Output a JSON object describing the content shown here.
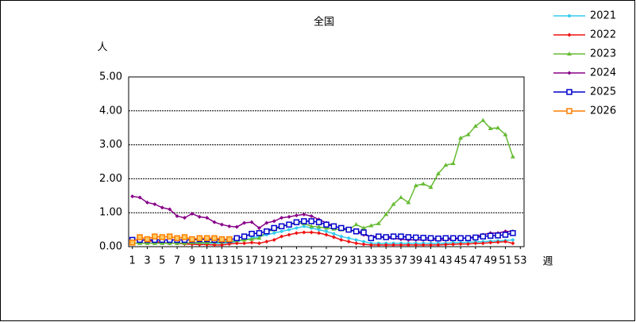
{
  "chart_data": {
    "type": "line",
    "title": "全国",
    "y_label": "人",
    "x_label": "週",
    "x": [
      1,
      2,
      3,
      4,
      5,
      6,
      7,
      8,
      9,
      10,
      11,
      12,
      13,
      14,
      15,
      16,
      17,
      18,
      19,
      20,
      21,
      22,
      23,
      24,
      25,
      26,
      27,
      28,
      29,
      30,
      31,
      32,
      33,
      34,
      35,
      36,
      37,
      38,
      39,
      40,
      41,
      42,
      43,
      44,
      45,
      46,
      47,
      48,
      49,
      50,
      51,
      52,
      53
    ],
    "xlim": [
      0.5,
      53.5
    ],
    "xticks": [
      1,
      3,
      5,
      7,
      9,
      11,
      13,
      15,
      17,
      19,
      21,
      23,
      25,
      27,
      29,
      31,
      33,
      35,
      37,
      39,
      41,
      43,
      45,
      47,
      49,
      51,
      53
    ],
    "ylim": [
      0,
      5
    ],
    "yticks": [
      {
        "value": 0,
        "label": "0.00"
      },
      {
        "value": 1,
        "label": "1.00"
      },
      {
        "value": 2,
        "label": "2.00"
      },
      {
        "value": 3,
        "label": "3.00"
      },
      {
        "value": 4,
        "label": "4.00"
      },
      {
        "value": 5,
        "label": "5.00"
      }
    ],
    "grid": true,
    "legend": "right",
    "series": [
      {
        "name": "2021",
        "color": "#33ccee",
        "marker": "circle",
        "values": [
          0.1,
          0.1,
          0.1,
          0.1,
          0.1,
          0.1,
          0.1,
          0.1,
          0.1,
          0.1,
          0.1,
          0.1,
          0.1,
          0.12,
          0.15,
          0.2,
          0.25,
          0.3,
          0.35,
          0.4,
          0.45,
          0.5,
          0.55,
          0.6,
          0.55,
          0.5,
          0.45,
          0.38,
          0.3,
          0.25,
          0.2,
          0.15,
          0.1,
          0.1,
          0.1,
          0.1,
          0.1,
          0.1,
          0.1,
          0.1,
          0.1,
          0.1,
          0.1,
          0.12,
          0.12,
          0.13,
          0.14,
          0.15,
          0.16,
          0.17,
          0.18,
          0.2,
          null
        ]
      },
      {
        "name": "2022",
        "color": "#ee1111",
        "marker": "diamond",
        "values": [
          0.2,
          0.2,
          0.18,
          0.15,
          0.12,
          0.1,
          0.1,
          0.08,
          0.07,
          0.06,
          0.06,
          0.05,
          0.05,
          0.08,
          0.1,
          0.1,
          0.12,
          0.1,
          0.15,
          0.2,
          0.3,
          0.35,
          0.4,
          0.42,
          0.42,
          0.4,
          0.35,
          0.28,
          0.2,
          0.15,
          0.1,
          0.07,
          0.05,
          0.05,
          0.05,
          0.05,
          0.05,
          0.05,
          0.05,
          0.05,
          0.05,
          0.05,
          0.06,
          0.07,
          0.08,
          0.08,
          0.1,
          0.1,
          0.12,
          0.13,
          0.15,
          0.1,
          null
        ]
      },
      {
        "name": "2023",
        "color": "#66bb33",
        "marker": "triangle",
        "values": [
          0.1,
          0.1,
          0.1,
          0.1,
          0.1,
          0.1,
          0.1,
          0.1,
          0.12,
          0.12,
          0.12,
          0.13,
          0.14,
          0.15,
          0.18,
          0.2,
          0.22,
          0.25,
          0.45,
          0.5,
          0.6,
          0.65,
          0.7,
          0.68,
          0.6,
          0.58,
          0.55,
          0.52,
          0.5,
          0.5,
          0.65,
          0.55,
          0.62,
          0.68,
          0.95,
          1.25,
          1.45,
          1.3,
          1.8,
          1.85,
          1.75,
          2.15,
          2.4,
          2.45,
          3.2,
          3.3,
          3.55,
          3.72,
          3.48,
          3.5,
          3.3,
          2.65,
          null
        ]
      },
      {
        "name": "2024",
        "color": "#880088",
        "marker": "diamond",
        "values": [
          1.48,
          1.45,
          1.3,
          1.25,
          1.15,
          1.1,
          0.9,
          0.85,
          0.97,
          0.88,
          0.85,
          0.72,
          0.65,
          0.6,
          0.58,
          0.7,
          0.72,
          0.55,
          0.7,
          0.75,
          0.85,
          0.88,
          0.92,
          0.95,
          0.9,
          0.8,
          0.7,
          0.6,
          0.55,
          0.5,
          0.45,
          0.35,
          0.3,
          0.3,
          0.25,
          0.25,
          0.22,
          0.2,
          0.2,
          0.2,
          0.2,
          0.2,
          0.2,
          0.22,
          0.25,
          0.25,
          0.3,
          0.35,
          0.4,
          0.4,
          0.45,
          0.45,
          null
        ]
      },
      {
        "name": "2025",
        "color": "#0000cc",
        "marker": "square",
        "values": [
          0.2,
          0.2,
          0.2,
          0.2,
          0.2,
          0.2,
          0.2,
          0.2,
          0.2,
          0.22,
          0.22,
          0.2,
          0.2,
          0.2,
          0.25,
          0.3,
          0.38,
          0.4,
          0.45,
          0.55,
          0.6,
          0.65,
          0.72,
          0.75,
          0.75,
          0.72,
          0.65,
          0.6,
          0.55,
          0.5,
          0.45,
          0.42,
          0.25,
          0.3,
          0.28,
          0.3,
          0.3,
          0.28,
          0.27,
          0.26,
          0.25,
          0.24,
          0.25,
          0.25,
          0.25,
          0.25,
          0.27,
          0.3,
          0.32,
          0.33,
          0.35,
          0.4,
          null
        ]
      },
      {
        "name": "2026",
        "color": "#ff7f00",
        "marker": "square",
        "values": [
          0.12,
          0.28,
          0.22,
          0.3,
          0.28,
          0.3,
          0.25,
          0.28,
          0.22,
          0.25,
          0.25,
          0.25,
          0.22,
          0.22,
          null,
          null,
          null,
          null,
          null,
          null,
          null,
          null,
          null,
          null,
          null,
          null,
          null,
          null,
          null,
          null,
          null,
          null,
          null,
          null,
          null,
          null,
          null,
          null,
          null,
          null,
          null,
          null,
          null,
          null,
          null,
          null,
          null,
          null,
          null,
          null,
          null,
          null,
          null
        ]
      }
    ]
  }
}
